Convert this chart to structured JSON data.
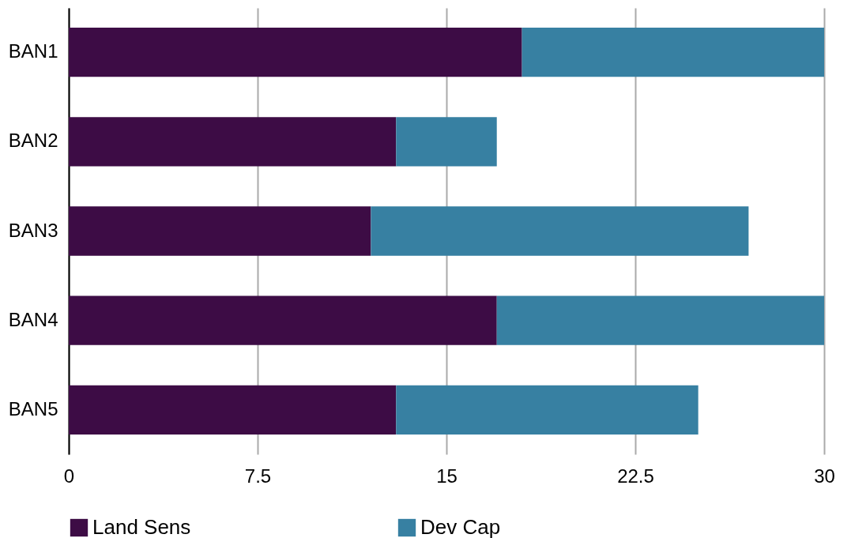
{
  "chart_data": {
    "type": "bar",
    "orientation": "horizontal",
    "stacked": true,
    "categories": [
      "BAN1",
      "BAN2",
      "BAN3",
      "BAN4",
      "BAN5"
    ],
    "series": [
      {
        "name": "Land Sens",
        "color": "#3d0c45",
        "values": [
          18,
          13,
          12,
          17,
          13
        ]
      },
      {
        "name": "Dev Cap",
        "color": "#3780a2",
        "values": [
          12,
          4,
          15,
          13,
          12
        ]
      }
    ],
    "xlim": [
      0,
      30
    ],
    "xticks": [
      0,
      7.5,
      15,
      22.5,
      30
    ],
    "grid": "x",
    "legend": "bottom"
  }
}
